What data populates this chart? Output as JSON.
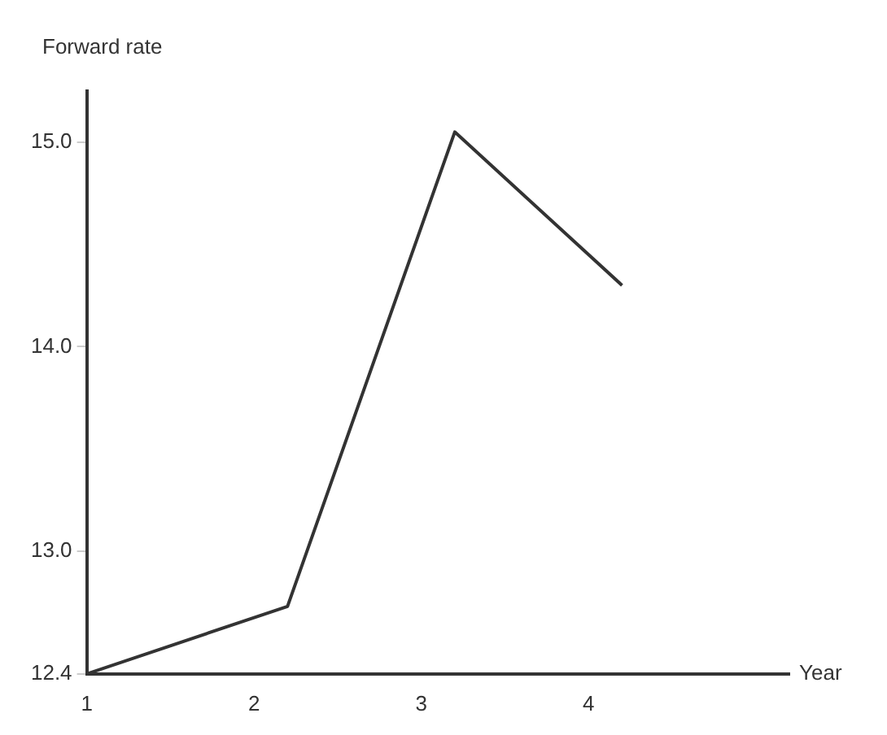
{
  "chart_data": {
    "type": "line",
    "xlabel": "Year",
    "ylabel": "Forward rate",
    "series": [
      {
        "color": "#333333",
        "x": [
          1,
          2.2,
          3.2,
          4.2
        ],
        "values": [
          12.4,
          12.73,
          15.05,
          14.3
        ]
      }
    ],
    "xlim": [
      1,
      5.2
    ],
    "xticks": [
      1,
      2,
      3,
      4
    ],
    "ylim": [
      12.4,
      15.25
    ],
    "yticks": [
      12.4,
      {
        "value": 13,
        "label": "13.0"
      },
      {
        "value": 14,
        "label": "14.0"
      },
      {
        "value": 15,
        "label": "15.0"
      }
    ],
    "grid": false,
    "legend": false,
    "marker": "none",
    "line_style": "solid"
  }
}
